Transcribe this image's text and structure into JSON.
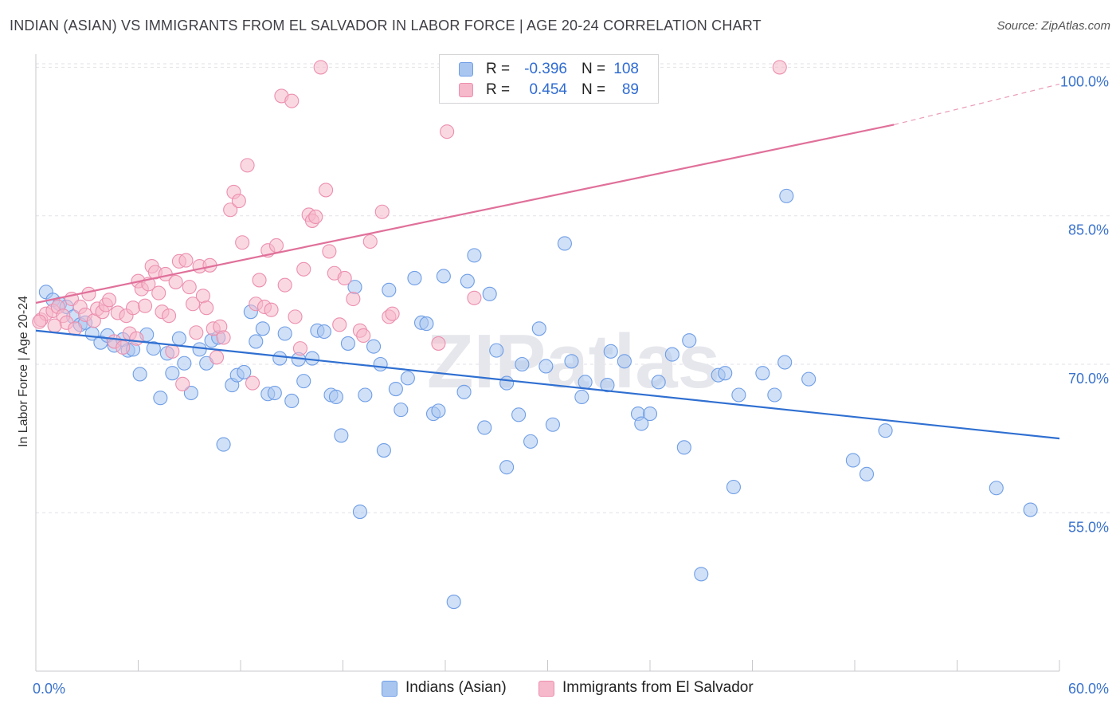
{
  "header": {
    "title": "INDIAN (ASIAN) VS IMMIGRANTS FROM EL SALVADOR IN LABOR FORCE | AGE 20-24 CORRELATION CHART",
    "source": "Source: ZipAtlas.com"
  },
  "watermark": "ZIPatlas",
  "legend_top": {
    "rows": [
      {
        "r_label": "R =",
        "r_value": "-0.396",
        "n_label": "N =",
        "n_value": "108"
      },
      {
        "r_label": "R =",
        "r_value": "0.454",
        "n_label": "N =",
        "n_value": "89"
      }
    ]
  },
  "legend_bottom": {
    "items": [
      "Indians (Asian)",
      "Immigrants from El Salvador"
    ]
  },
  "colors": {
    "blue_fill": "#a9c6f0",
    "blue_stroke": "#6f9ee6",
    "blue_line": "#2f6fd1",
    "pink_fill": "#f6b8cb",
    "pink_stroke": "#ec8fae",
    "pink_line": "#e0709a",
    "tick_label": "#3a72cc",
    "grid": "#e2e2e8"
  },
  "chart_data": {
    "type": "scatter",
    "title": "INDIAN (ASIAN) VS IMMIGRANTS FROM EL SALVADOR IN LABOR FORCE | AGE 20-24 CORRELATION CHART",
    "xlabel": "",
    "ylabel": "In Labor Force | Age 20-24",
    "xlim": [
      0,
      60
    ],
    "ylim": [
      39,
      101
    ],
    "x_tick_labels": [
      "0.0%",
      "60.0%"
    ],
    "y_ticks": [
      55,
      70,
      85,
      100
    ],
    "y_tick_labels": [
      "55.0%",
      "70.0%",
      "85.0%",
      "100.0%"
    ],
    "grid": true,
    "legend_position": "top-center",
    "series": [
      {
        "name": "Indians (Asian)",
        "color": "#a9c6f0",
        "trend": {
          "x": [
            0,
            60
          ],
          "y": [
            73.4,
            62.5
          ]
        },
        "points": [
          {
            "x": 0.6,
            "y": 77.3
          },
          {
            "x": 1.0,
            "y": 76.5
          },
          {
            "x": 1.4,
            "y": 76.1
          },
          {
            "x": 1.8,
            "y": 75.8
          },
          {
            "x": 2.2,
            "y": 74.8
          },
          {
            "x": 2.6,
            "y": 74.0
          },
          {
            "x": 2.9,
            "y": 74.2
          },
          {
            "x": 3.3,
            "y": 73.1
          },
          {
            "x": 3.8,
            "y": 72.2
          },
          {
            "x": 4.2,
            "y": 72.9
          },
          {
            "x": 4.6,
            "y": 71.9
          },
          {
            "x": 5.1,
            "y": 72.5
          },
          {
            "x": 5.4,
            "y": 71.4
          },
          {
            "x": 5.7,
            "y": 71.5
          },
          {
            "x": 6.1,
            "y": 69.0
          },
          {
            "x": 6.5,
            "y": 73.0
          },
          {
            "x": 6.9,
            "y": 71.6
          },
          {
            "x": 7.3,
            "y": 66.6
          },
          {
            "x": 7.7,
            "y": 71.1
          },
          {
            "x": 8.0,
            "y": 69.1
          },
          {
            "x": 8.4,
            "y": 72.6
          },
          {
            "x": 8.7,
            "y": 70.1
          },
          {
            "x": 9.1,
            "y": 67.1
          },
          {
            "x": 9.6,
            "y": 71.5
          },
          {
            "x": 10.0,
            "y": 70.1
          },
          {
            "x": 10.3,
            "y": 72.4
          },
          {
            "x": 10.7,
            "y": 72.7
          },
          {
            "x": 11.0,
            "y": 61.9
          },
          {
            "x": 11.5,
            "y": 67.9
          },
          {
            "x": 11.8,
            "y": 68.9
          },
          {
            "x": 12.2,
            "y": 69.2
          },
          {
            "x": 12.6,
            "y": 75.3
          },
          {
            "x": 12.9,
            "y": 72.3
          },
          {
            "x": 13.3,
            "y": 73.6
          },
          {
            "x": 13.6,
            "y": 67.0
          },
          {
            "x": 14.0,
            "y": 67.1
          },
          {
            "x": 14.3,
            "y": 70.6
          },
          {
            "x": 14.6,
            "y": 73.1
          },
          {
            "x": 15.0,
            "y": 66.3
          },
          {
            "x": 15.4,
            "y": 70.5
          },
          {
            "x": 15.7,
            "y": 68.3
          },
          {
            "x": 16.2,
            "y": 70.6
          },
          {
            "x": 16.5,
            "y": 73.4
          },
          {
            "x": 16.9,
            "y": 73.3
          },
          {
            "x": 17.3,
            "y": 66.9
          },
          {
            "x": 17.6,
            "y": 66.7
          },
          {
            "x": 17.9,
            "y": 62.8
          },
          {
            "x": 18.3,
            "y": 72.1
          },
          {
            "x": 18.7,
            "y": 77.8
          },
          {
            "x": 19.0,
            "y": 55.1
          },
          {
            "x": 19.3,
            "y": 66.9
          },
          {
            "x": 19.8,
            "y": 71.8
          },
          {
            "x": 20.2,
            "y": 70.0
          },
          {
            "x": 20.4,
            "y": 61.3
          },
          {
            "x": 20.7,
            "y": 77.5
          },
          {
            "x": 21.1,
            "y": 67.5
          },
          {
            "x": 21.4,
            "y": 65.4
          },
          {
            "x": 21.8,
            "y": 68.6
          },
          {
            "x": 22.2,
            "y": 78.7
          },
          {
            "x": 22.6,
            "y": 74.2
          },
          {
            "x": 22.9,
            "y": 74.1
          },
          {
            "x": 23.3,
            "y": 65.0
          },
          {
            "x": 23.6,
            "y": 65.3
          },
          {
            "x": 23.9,
            "y": 78.9
          },
          {
            "x": 24.5,
            "y": 46.0
          },
          {
            "x": 25.1,
            "y": 67.2
          },
          {
            "x": 25.3,
            "y": 78.4
          },
          {
            "x": 25.7,
            "y": 81.0
          },
          {
            "x": 26.3,
            "y": 63.6
          },
          {
            "x": 26.6,
            "y": 77.1
          },
          {
            "x": 27.0,
            "y": 71.4
          },
          {
            "x": 27.6,
            "y": 68.1
          },
          {
            "x": 27.6,
            "y": 59.6
          },
          {
            "x": 28.3,
            "y": 64.9
          },
          {
            "x": 28.5,
            "y": 70.0
          },
          {
            "x": 29.0,
            "y": 62.2
          },
          {
            "x": 29.5,
            "y": 73.6
          },
          {
            "x": 29.9,
            "y": 69.8
          },
          {
            "x": 30.3,
            "y": 63.9
          },
          {
            "x": 31.0,
            "y": 82.2
          },
          {
            "x": 31.4,
            "y": 70.3
          },
          {
            "x": 32.0,
            "y": 66.7
          },
          {
            "x": 32.2,
            "y": 68.2
          },
          {
            "x": 33.5,
            "y": 67.9
          },
          {
            "x": 33.7,
            "y": 71.3
          },
          {
            "x": 34.5,
            "y": 70.3
          },
          {
            "x": 35.3,
            "y": 65.0
          },
          {
            "x": 35.5,
            "y": 64.0
          },
          {
            "x": 36.0,
            "y": 65.0
          },
          {
            "x": 36.5,
            "y": 68.2
          },
          {
            "x": 37.3,
            "y": 71.0
          },
          {
            "x": 38.0,
            "y": 61.6
          },
          {
            "x": 38.3,
            "y": 72.4
          },
          {
            "x": 39.0,
            "y": 48.8
          },
          {
            "x": 40.0,
            "y": 68.9
          },
          {
            "x": 40.4,
            "y": 69.1
          },
          {
            "x": 40.9,
            "y": 57.6
          },
          {
            "x": 41.2,
            "y": 66.9
          },
          {
            "x": 42.6,
            "y": 69.1
          },
          {
            "x": 43.3,
            "y": 66.9
          },
          {
            "x": 43.9,
            "y": 70.2
          },
          {
            "x": 44.0,
            "y": 87.0
          },
          {
            "x": 45.3,
            "y": 68.5
          },
          {
            "x": 47.9,
            "y": 60.3
          },
          {
            "x": 48.7,
            "y": 58.9
          },
          {
            "x": 49.8,
            "y": 63.3
          },
          {
            "x": 56.3,
            "y": 57.5
          },
          {
            "x": 58.3,
            "y": 55.3
          }
        ]
      },
      {
        "name": "Immigrants from El Salvador",
        "color": "#f6b8cb",
        "trend": {
          "x": [
            0,
            50.3
          ],
          "y": [
            76.2,
            94.2
          ],
          "dashed_to": {
            "x": 60,
            "y": 98.3
          }
        },
        "points": [
          {
            "x": 0.3,
            "y": 74.5
          },
          {
            "x": 0.6,
            "y": 75.1
          },
          {
            "x": 1.0,
            "y": 75.4
          },
          {
            "x": 1.3,
            "y": 75.8
          },
          {
            "x": 1.6,
            "y": 74.9
          },
          {
            "x": 1.8,
            "y": 74.2
          },
          {
            "x": 2.1,
            "y": 76.6
          },
          {
            "x": 2.3,
            "y": 73.6
          },
          {
            "x": 2.6,
            "y": 75.8
          },
          {
            "x": 2.9,
            "y": 75.0
          },
          {
            "x": 3.1,
            "y": 77.1
          },
          {
            "x": 3.4,
            "y": 74.4
          },
          {
            "x": 3.6,
            "y": 75.6
          },
          {
            "x": 3.9,
            "y": 75.3
          },
          {
            "x": 4.1,
            "y": 76.0
          },
          {
            "x": 4.3,
            "y": 76.5
          },
          {
            "x": 4.6,
            "y": 72.3
          },
          {
            "x": 4.8,
            "y": 75.2
          },
          {
            "x": 5.1,
            "y": 71.7
          },
          {
            "x": 5.3,
            "y": 74.9
          },
          {
            "x": 5.5,
            "y": 73.1
          },
          {
            "x": 5.7,
            "y": 75.7
          },
          {
            "x": 5.9,
            "y": 72.6
          },
          {
            "x": 6.0,
            "y": 78.4
          },
          {
            "x": 6.2,
            "y": 77.6
          },
          {
            "x": 6.4,
            "y": 75.9
          },
          {
            "x": 6.6,
            "y": 78.1
          },
          {
            "x": 6.8,
            "y": 79.9
          },
          {
            "x": 7.0,
            "y": 79.3
          },
          {
            "x": 7.2,
            "y": 77.2
          },
          {
            "x": 7.4,
            "y": 75.3
          },
          {
            "x": 7.6,
            "y": 79.1
          },
          {
            "x": 7.8,
            "y": 74.9
          },
          {
            "x": 8.0,
            "y": 71.3
          },
          {
            "x": 8.2,
            "y": 78.3
          },
          {
            "x": 8.4,
            "y": 80.4
          },
          {
            "x": 8.6,
            "y": 68.0
          },
          {
            "x": 8.8,
            "y": 80.5
          },
          {
            "x": 9.0,
            "y": 77.8
          },
          {
            "x": 9.2,
            "y": 76.1
          },
          {
            "x": 9.4,
            "y": 73.2
          },
          {
            "x": 9.6,
            "y": 79.9
          },
          {
            "x": 9.8,
            "y": 76.9
          },
          {
            "x": 10.0,
            "y": 75.7
          },
          {
            "x": 10.2,
            "y": 80.0
          },
          {
            "x": 10.4,
            "y": 73.6
          },
          {
            "x": 10.6,
            "y": 70.7
          },
          {
            "x": 10.8,
            "y": 73.8
          },
          {
            "x": 11.0,
            "y": 72.7
          },
          {
            "x": 11.4,
            "y": 85.6
          },
          {
            "x": 11.6,
            "y": 87.4
          },
          {
            "x": 11.9,
            "y": 86.5
          },
          {
            "x": 12.1,
            "y": 82.3
          },
          {
            "x": 12.4,
            "y": 90.1
          },
          {
            "x": 12.7,
            "y": 68.1
          },
          {
            "x": 12.9,
            "y": 76.1
          },
          {
            "x": 13.1,
            "y": 78.5
          },
          {
            "x": 13.4,
            "y": 75.8
          },
          {
            "x": 13.6,
            "y": 81.5
          },
          {
            "x": 13.8,
            "y": 75.5
          },
          {
            "x": 14.1,
            "y": 82.0
          },
          {
            "x": 14.4,
            "y": 97.1
          },
          {
            "x": 14.6,
            "y": 78.0
          },
          {
            "x": 15.0,
            "y": 96.6
          },
          {
            "x": 15.2,
            "y": 74.8
          },
          {
            "x": 15.5,
            "y": 71.6
          },
          {
            "x": 15.7,
            "y": 79.6
          },
          {
            "x": 16.0,
            "y": 85.1
          },
          {
            "x": 16.2,
            "y": 84.5
          },
          {
            "x": 16.4,
            "y": 84.9
          },
          {
            "x": 16.7,
            "y": 100.0
          },
          {
            "x": 17.0,
            "y": 87.6
          },
          {
            "x": 17.2,
            "y": 81.4
          },
          {
            "x": 17.5,
            "y": 79.2
          },
          {
            "x": 17.8,
            "y": 74.0
          },
          {
            "x": 18.1,
            "y": 78.7
          },
          {
            "x": 18.6,
            "y": 76.6
          },
          {
            "x": 19.0,
            "y": 73.4
          },
          {
            "x": 19.2,
            "y": 72.9
          },
          {
            "x": 19.6,
            "y": 82.4
          },
          {
            "x": 20.3,
            "y": 85.4
          },
          {
            "x": 20.7,
            "y": 74.8
          },
          {
            "x": 20.9,
            "y": 75.1
          },
          {
            "x": 23.6,
            "y": 72.1
          },
          {
            "x": 24.1,
            "y": 93.5
          },
          {
            "x": 25.7,
            "y": 76.7
          },
          {
            "x": 43.6,
            "y": 100.0
          },
          {
            "x": 0.2,
            "y": 74.3
          },
          {
            "x": 1.1,
            "y": 73.9
          }
        ]
      }
    ]
  }
}
